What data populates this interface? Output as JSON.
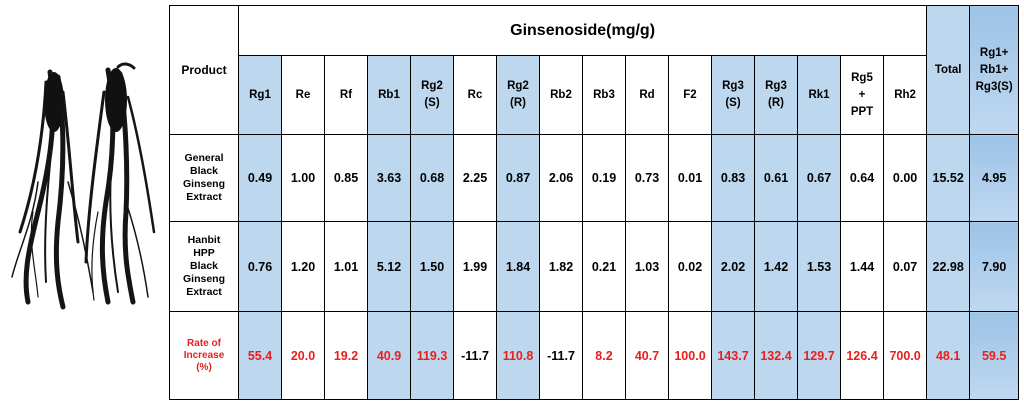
{
  "table": {
    "product_header": "Product",
    "group_header": "Ginsenoside(mg/g)",
    "total_header": "Total",
    "sum_header": "Rg1+\nRb1+\nRg3(S)",
    "columns": [
      "Rg1",
      "Re",
      "Rf",
      "Rb1",
      "Rg2\n(S)",
      "Rc",
      "Rg2\n(R)",
      "Rb2",
      "Rb3",
      "Rd",
      "F2",
      "Rg3\n(S)",
      "Rg3\n(R)",
      "Rk1",
      "Rg5\n+\nPPT",
      "Rh2"
    ],
    "rows": [
      {
        "label": "General\nBlack\nGinseng\nExtract",
        "values": [
          "0.49",
          "1.00",
          "0.85",
          "3.63",
          "0.68",
          "2.25",
          "0.87",
          "2.06",
          "0.19",
          "0.73",
          "0.01",
          "0.83",
          "0.61",
          "0.67",
          "0.64",
          "0.00"
        ],
        "total": "15.52",
        "sum": "4.95"
      },
      {
        "label": "Hanbit\nHPP\nBlack\nGinseng\nExtract",
        "values": [
          "0.76",
          "1.20",
          "1.01",
          "5.12",
          "1.50",
          "1.99",
          "1.84",
          "1.82",
          "0.21",
          "1.03",
          "0.02",
          "2.02",
          "1.42",
          "1.53",
          "1.44",
          "0.07"
        ],
        "total": "22.98",
        "sum": "7.90"
      }
    ],
    "rate_row": {
      "label": "Rate of\nIncrease\n(%)",
      "values": [
        "55.4",
        "20.0",
        "19.2",
        "40.9",
        "119.3",
        "-11.7",
        "110.8",
        "-11.7",
        "8.2",
        "40.7",
        "100.0",
        "143.7",
        "132.4",
        "129.7",
        "126.4",
        "700.0"
      ],
      "total": "48.1",
      "sum": "59.5"
    }
  },
  "colors": {
    "highlight": "#bdd7ee",
    "rate_text": "#e8201c",
    "border": "#000000"
  }
}
